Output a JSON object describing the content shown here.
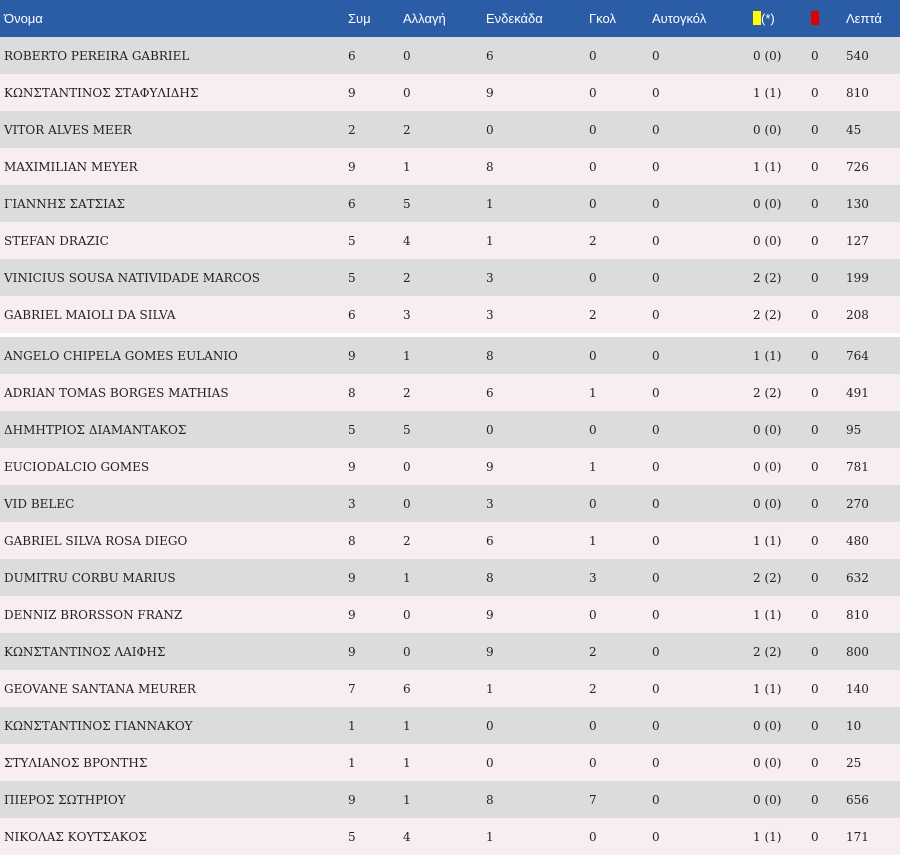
{
  "colors": {
    "header_bg": "#2a5da5",
    "row_odd": "#dcdcdc",
    "row_even": "#f8eef1",
    "yellow_card": "#ffff00",
    "red_card": "#e00000"
  },
  "headers": {
    "name": "Όνομα",
    "appearances": "Συμ",
    "substitute": "Αλλαγή",
    "starting": "Ενδεκάδα",
    "goals": "Γκολ",
    "own_goals": "Αυτογκόλ",
    "yellow_suffix": "(*)",
    "minutes": "Λεπτά"
  },
  "rows": [
    {
      "name": "ROBERTO PEREIRA GABRIEL",
      "app": "6",
      "sub": "0",
      "start": "6",
      "goals": "0",
      "own": "0",
      "yellow": "0 (0)",
      "red": "0",
      "min": "540"
    },
    {
      "name": "ΚΩΝΣΤΑΝΤΙΝΟΣ ΣΤΑΦΥΛΙΔΗΣ",
      "app": "9",
      "sub": "0",
      "start": "9",
      "goals": "0",
      "own": "0",
      "yellow": "1 (1)",
      "red": "0",
      "min": "810"
    },
    {
      "name": "VITOR ALVES MEER",
      "app": "2",
      "sub": "2",
      "start": "0",
      "goals": "0",
      "own": "0",
      "yellow": "0 (0)",
      "red": "0",
      "min": "45"
    },
    {
      "name": "MAXIMILIAN MEYER",
      "app": "9",
      "sub": "1",
      "start": "8",
      "goals": "0",
      "own": "0",
      "yellow": "1 (1)",
      "red": "0",
      "min": "726"
    },
    {
      "name": "ΓΙΑΝΝΗΣ ΣΑΤΣΙΑΣ",
      "app": "6",
      "sub": "5",
      "start": "1",
      "goals": "0",
      "own": "0",
      "yellow": "0 (0)",
      "red": "0",
      "min": "130"
    },
    {
      "name": "STEFAN DRAZIC",
      "app": "5",
      "sub": "4",
      "start": "1",
      "goals": "2",
      "own": "0",
      "yellow": "0 (0)",
      "red": "0",
      "min": "127"
    },
    {
      "name": "VINICIUS SOUSA NATIVIDADE MARCOS",
      "app": "5",
      "sub": "2",
      "start": "3",
      "goals": "0",
      "own": "0",
      "yellow": "2 (2)",
      "red": "0",
      "min": "199"
    },
    {
      "name": "GABRIEL MAIOLI DA SILVA",
      "app": "6",
      "sub": "3",
      "start": "3",
      "goals": "2",
      "own": "0",
      "yellow": "2 (2)",
      "red": "0",
      "min": "208"
    },
    {
      "name": "ANGELO CHIPELA GOMES EULANIO",
      "app": "9",
      "sub": "1",
      "start": "8",
      "goals": "0",
      "own": "0",
      "yellow": "1 (1)",
      "red": "0",
      "min": "764"
    },
    {
      "name": "ADRIAN TOMAS BORGES MATHIAS",
      "app": "8",
      "sub": "2",
      "start": "6",
      "goals": "1",
      "own": "0",
      "yellow": "2 (2)",
      "red": "0",
      "min": "491"
    },
    {
      "name": "ΔΗΜΗΤΡΙΟΣ ΔΙΑΜΑΝΤΑΚΟΣ",
      "app": "5",
      "sub": "5",
      "start": "0",
      "goals": "0",
      "own": "0",
      "yellow": "0 (0)",
      "red": "0",
      "min": "95"
    },
    {
      "name": "EUCIODALCIO GOMES",
      "app": "9",
      "sub": "0",
      "start": "9",
      "goals": "1",
      "own": "0",
      "yellow": "0 (0)",
      "red": "0",
      "min": "781"
    },
    {
      "name": "VID BELEC",
      "app": "3",
      "sub": "0",
      "start": "3",
      "goals": "0",
      "own": "0",
      "yellow": "0 (0)",
      "red": "0",
      "min": "270"
    },
    {
      "name": "GABRIEL SILVA ROSA DIEGO",
      "app": "8",
      "sub": "2",
      "start": "6",
      "goals": "1",
      "own": "0",
      "yellow": "1 (1)",
      "red": "0",
      "min": "480"
    },
    {
      "name": "DUMITRU CORBU MARIUS",
      "app": "9",
      "sub": "1",
      "start": "8",
      "goals": "3",
      "own": "0",
      "yellow": "2 (2)",
      "red": "0",
      "min": "632"
    },
    {
      "name": "DENNIZ BRORSSON FRANZ",
      "app": "9",
      "sub": "0",
      "start": "9",
      "goals": "0",
      "own": "0",
      "yellow": "1 (1)",
      "red": "0",
      "min": "810"
    },
    {
      "name": "ΚΩΝΣΤΑΝΤΙΝΟΣ ΛΑΙΦΗΣ",
      "app": "9",
      "sub": "0",
      "start": "9",
      "goals": "2",
      "own": "0",
      "yellow": "2 (2)",
      "red": "0",
      "min": "800"
    },
    {
      "name": "GEOVANE SANTANA MEURER",
      "app": "7",
      "sub": "6",
      "start": "1",
      "goals": "2",
      "own": "0",
      "yellow": "1 (1)",
      "red": "0",
      "min": "140"
    },
    {
      "name": "ΚΩΝΣΤΑΝΤΙΝΟΣ ΓΙΑΝΝΑΚΟΥ",
      "app": "1",
      "sub": "1",
      "start": "0",
      "goals": "0",
      "own": "0",
      "yellow": "0 (0)",
      "red": "0",
      "min": "10"
    },
    {
      "name": "ΣΤΥΛΙΑΝΟΣ ΒΡΟΝΤΗΣ",
      "app": "1",
      "sub": "1",
      "start": "0",
      "goals": "0",
      "own": "0",
      "yellow": "0 (0)",
      "red": "0",
      "min": "25"
    },
    {
      "name": "ΠΙΕΡΟΣ ΣΩΤΗΡΙΟΥ",
      "app": "9",
      "sub": "1",
      "start": "8",
      "goals": "7",
      "own": "0",
      "yellow": "0 (0)",
      "red": "0",
      "min": "656"
    },
    {
      "name": "ΝΙΚΟΛΑΣ ΚΟΥΤΣΑΚΟΣ",
      "app": "5",
      "sub": "4",
      "start": "1",
      "goals": "0",
      "own": "0",
      "yellow": "1 (1)",
      "red": "0",
      "min": "171"
    }
  ]
}
